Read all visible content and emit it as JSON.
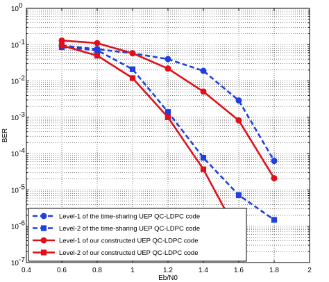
{
  "chart_data": {
    "type": "line",
    "xlabel": "Eb/N0",
    "ylabel": "BER",
    "xlim": [
      0.4,
      2.0
    ],
    "ylim_log10": [
      -7,
      0
    ],
    "yscale": "log",
    "grid": true,
    "legend_placement": "bottom-left",
    "x_ticks": [
      "0.4",
      "0.6",
      "0.8",
      "1",
      "1.2",
      "1.4",
      "1.6",
      "1.8",
      "2"
    ],
    "y_ticks": [
      {
        "base": "10",
        "exp": "0"
      },
      {
        "base": "10",
        "exp": "-1"
      },
      {
        "base": "10",
        "exp": "-2"
      },
      {
        "base": "10",
        "exp": "-3"
      },
      {
        "base": "10",
        "exp": "-4"
      },
      {
        "base": "10",
        "exp": "-5"
      },
      {
        "base": "10",
        "exp": "-6"
      },
      {
        "base": "10",
        "exp": "-7"
      }
    ],
    "series": [
      {
        "name": "Level-1 of the time-sharing UEP QC-LDPC code",
        "color": "#1f3fe0",
        "dash": true,
        "marker": "circle",
        "x": [
          0.6,
          0.8,
          1.0,
          1.2,
          1.4,
          1.6,
          1.8
        ],
        "y": [
          0.095,
          0.075,
          0.058,
          0.04,
          0.019,
          0.0029,
          6.3e-05
        ]
      },
      {
        "name": "Level-2 of the time-sharing UEP QC-LDPC code",
        "color": "#1f3fe0",
        "dash": true,
        "marker": "square",
        "x": [
          0.6,
          0.8,
          1.0,
          1.2,
          1.4,
          1.6,
          1.8
        ],
        "y": [
          0.085,
          0.07,
          0.021,
          0.0014,
          7.7e-05,
          7.2e-06,
          1.5e-06
        ]
      },
      {
        "name": "Level-1 of our constructed UEP QC-LDPC code",
        "color": "#e0101a",
        "dash": false,
        "marker": "circle",
        "x": [
          0.6,
          0.8,
          1.0,
          1.2,
          1.4,
          1.6,
          1.8
        ],
        "y": [
          0.13,
          0.11,
          0.058,
          0.022,
          0.0051,
          0.00082,
          2.1e-05
        ]
      },
      {
        "name": "Level-2 of our constructed UEP QC-LDPC code",
        "color": "#e0101a",
        "dash": false,
        "marker": "square",
        "x": [
          0.6,
          0.8,
          1.0,
          1.2,
          1.4,
          1.6
        ],
        "y": [
          0.095,
          0.05,
          0.012,
          0.001,
          3.7e-05,
          5.7e-07
        ]
      }
    ]
  }
}
